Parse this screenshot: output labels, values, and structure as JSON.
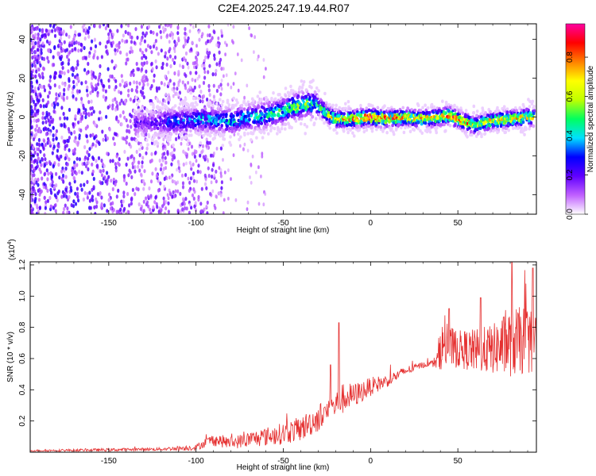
{
  "title": "C2E4.2025.247.19.44.R07",
  "chart_data": [
    {
      "type": "heatmap",
      "xlabel": "Height of straight line (km)",
      "ylabel": "Frequency (Hz)",
      "xlim": [
        -195,
        95
      ],
      "ylim": [
        -50,
        48
      ],
      "x_ticks": [
        -150,
        -100,
        -50,
        0,
        50
      ],
      "x_tick_labels": [
        "-150",
        "-100",
        "-50",
        "0",
        "50"
      ],
      "y_ticks": [
        40,
        20,
        0,
        -20,
        -40
      ],
      "y_tick_labels": [
        "40",
        "20",
        "0",
        "-20",
        "-40"
      ],
      "colorbar": {
        "label": "Normalized spectral amplitude",
        "range": [
          0.0,
          0.97
        ],
        "ticks": [
          0.0,
          0.2,
          0.4,
          0.6,
          0.8
        ],
        "tick_labels": [
          "0.0",
          "0.2",
          "0.4",
          "0.6",
          "0.8"
        ],
        "colors": [
          "#ffffff",
          "#c060ff",
          "#6000ff",
          "#0000ff",
          "#00e0ff",
          "#00ff60",
          "#c0ff00",
          "#ffff00",
          "#ff8000",
          "#ff0000",
          "#ff00a0"
        ]
      },
      "ridge": {
        "x": [
          -125,
          -110,
          -95,
          -80,
          -70,
          -60,
          -50,
          -45,
          -40,
          -35,
          -30,
          -25,
          -20,
          -10,
          0,
          10,
          20,
          30,
          40,
          45,
          50,
          55,
          60,
          70,
          80,
          90
        ],
        "y": [
          -3,
          -2,
          -1,
          -2,
          0,
          1,
          3,
          5,
          6,
          7,
          6,
          2,
          -1,
          -1,
          0,
          -1,
          0,
          -1,
          0,
          1,
          -1,
          -3,
          -4,
          -2,
          -1,
          0
        ],
        "amplitude": [
          0.25,
          0.35,
          0.4,
          0.45,
          0.45,
          0.5,
          0.55,
          0.6,
          0.6,
          0.55,
          0.5,
          0.65,
          0.8,
          0.85,
          0.95,
          0.85,
          0.8,
          0.75,
          0.75,
          0.9,
          0.8,
          0.85,
          0.75,
          0.75,
          0.75,
          0.7
        ]
      }
    },
    {
      "type": "line",
      "xlabel": "Height of straight line (km)",
      "ylabel": "SNR (10 * v/v)",
      "y_scale_label": "(x10",
      "y_scale_exponent": "4",
      "y_scale_suffix": ")",
      "xlim": [
        -195,
        95
      ],
      "ylim": [
        0,
        1.22
      ],
      "x_ticks": [
        -150,
        -100,
        -50,
        0,
        50
      ],
      "x_tick_labels": [
        "-150",
        "-100",
        "-50",
        "0",
        "50"
      ],
      "y_ticks": [
        0.2,
        0.4,
        0.6,
        0.8,
        1.0,
        1.2
      ],
      "y_tick_labels": [
        "0.2",
        "0.4",
        "0.6",
        "0.8",
        "1.0",
        "1.2"
      ],
      "color": "#e53030",
      "series": [
        {
          "name": "SNR",
          "x": [
            -195,
            -150,
            -120,
            -100,
            -95,
            -90,
            -80,
            -70,
            -60,
            -50,
            -40,
            -30,
            -20,
            -15,
            -10,
            0,
            10,
            20,
            30,
            35,
            38,
            40,
            50,
            60,
            70,
            80,
            90,
            95
          ],
          "y": [
            0.01,
            0.015,
            0.02,
            0.03,
            0.06,
            0.08,
            0.06,
            0.08,
            0.1,
            0.12,
            0.15,
            0.22,
            0.3,
            0.35,
            0.36,
            0.42,
            0.46,
            0.52,
            0.56,
            0.57,
            0.58,
            0.68,
            0.66,
            0.65,
            0.66,
            0.7,
            0.72,
            0.74
          ],
          "spread": [
            0.005,
            0.01,
            0.01,
            0.02,
            0.03,
            0.04,
            0.04,
            0.05,
            0.06,
            0.07,
            0.08,
            0.09,
            0.09,
            0.1,
            0.08,
            0.06,
            0.04,
            0.03,
            0.02,
            0.02,
            0.05,
            0.15,
            0.12,
            0.14,
            0.16,
            0.22,
            0.22,
            0.22
          ],
          "peaks": [
            {
              "x": -18,
              "y": 0.83
            },
            {
              "x": -23,
              "y": 0.56
            },
            {
              "x": 45,
              "y": 0.92
            },
            {
              "x": 63,
              "y": 0.99
            },
            {
              "x": 81,
              "y": 1.22
            },
            {
              "x": 93,
              "y": 1.18
            }
          ]
        }
      ]
    }
  ]
}
